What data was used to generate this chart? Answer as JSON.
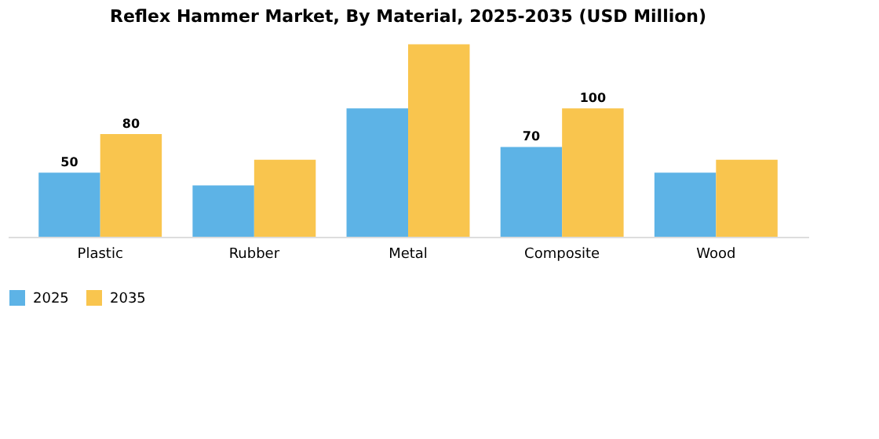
{
  "chart_data": {
    "type": "bar",
    "title": "Reflex Hammer Market, By Material, 2025-2035 (USD Million)",
    "categories": [
      "Plastic",
      "Rubber",
      "Metal",
      "Composite",
      "Wood"
    ],
    "series": [
      {
        "name": "2025",
        "color": "#5db3e6",
        "values": [
          50,
          40,
          100,
          70,
          50
        ],
        "value_labels": [
          "50",
          null,
          null,
          "70",
          null
        ]
      },
      {
        "name": "2035",
        "color": "#f9c54e",
        "values": [
          80,
          60,
          150,
          100,
          60
        ],
        "value_labels": [
          "80",
          null,
          null,
          "100",
          null
        ]
      }
    ],
    "legend": "bottom",
    "grid": false
  }
}
